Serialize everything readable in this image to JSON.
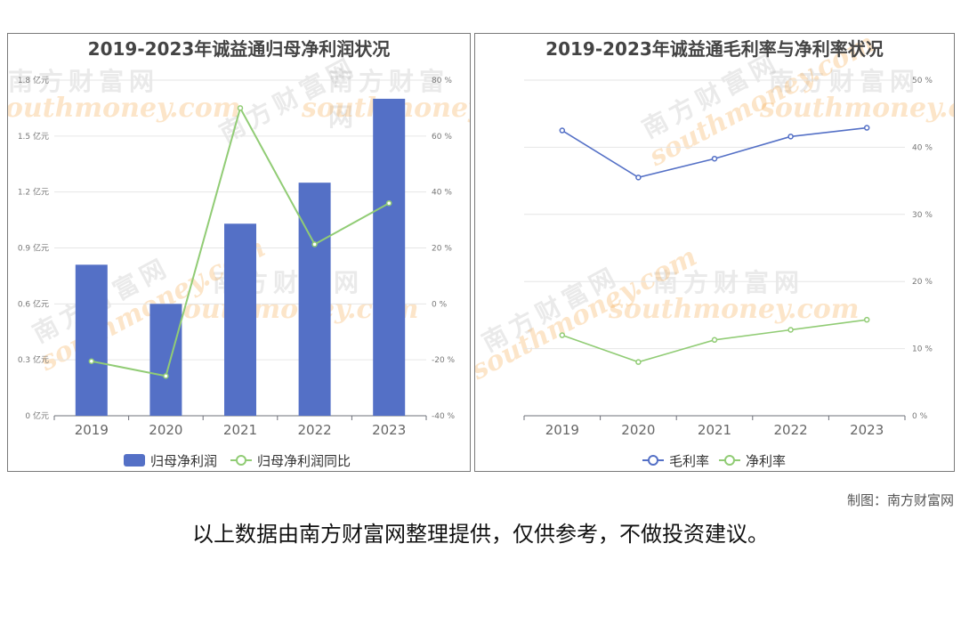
{
  "chart_data": [
    {
      "type": "bar",
      "title": "2019-2023年诚益通归母净利润状况",
      "categories": [
        "2019",
        "2020",
        "2021",
        "2022",
        "2023"
      ],
      "left_axis": {
        "ticks": [
          "0 亿元",
          "0.3 亿元",
          "0.6 亿元",
          "0.9 亿元",
          "1.2 亿元",
          "1.5 亿元",
          "1.8 亿元"
        ],
        "ylim": [
          0,
          1.8
        ]
      },
      "right_axis": {
        "ticks": [
          "-40 %",
          "-20 %",
          "0 %",
          "20 %",
          "40 %",
          "60 %",
          "80 %"
        ],
        "ylim": [
          -40,
          80
        ]
      },
      "series": [
        {
          "name": "归母净利润",
          "type": "bar",
          "axis": "left",
          "color": "#5470c6",
          "values": [
            0.81,
            0.6,
            1.03,
            1.25,
            1.7
          ]
        },
        {
          "name": "归母净利润同比",
          "type": "line",
          "axis": "right",
          "color": "#91cc75",
          "values": [
            -20.5,
            -25.8,
            70.0,
            21.3,
            36.0
          ]
        }
      ],
      "grid": true,
      "legend": "bottom"
    },
    {
      "type": "line",
      "title": "2019-2023年诚益通毛利率与净利率状况",
      "categories": [
        "2019",
        "2020",
        "2021",
        "2022",
        "2023"
      ],
      "right_axis": {
        "ticks": [
          "0 %",
          "10 %",
          "20 %",
          "30 %",
          "40 %",
          "50 %"
        ],
        "ylim": [
          0,
          50
        ]
      },
      "series": [
        {
          "name": "毛利率",
          "axis": "right",
          "color": "#5470c6",
          "values": [
            42.5,
            35.5,
            38.3,
            41.6,
            42.9
          ]
        },
        {
          "name": "净利率",
          "axis": "right",
          "color": "#91cc75",
          "values": [
            12.0,
            8.0,
            11.3,
            12.8,
            14.3
          ]
        }
      ],
      "grid": true,
      "legend": "bottom"
    }
  ],
  "watermark": {
    "cn": "南方财富网",
    "en": "southmoney.com"
  },
  "credit": "制图：南方财富网",
  "disclaimer": "以上数据由南方财富网整理提供，仅供参考，不做投资建议。"
}
